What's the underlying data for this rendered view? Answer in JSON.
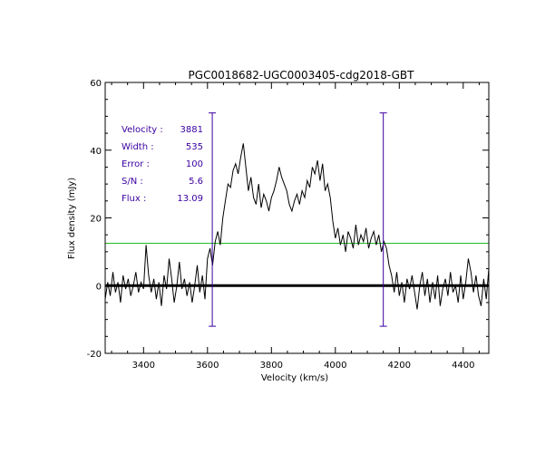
{
  "chart_data": {
    "type": "line",
    "title": "PGC0018682-UGC0003405-cdg2018-GBT",
    "xlabel": "Velocity (km/s)",
    "ylabel": "Flux density (mJy)",
    "xlim": [
      3280,
      4480
    ],
    "ylim": [
      -20,
      60
    ],
    "x_ticks": [
      3400,
      3600,
      3800,
      4000,
      4200,
      4400
    ],
    "y_ticks": [
      -20,
      0,
      20,
      40,
      60
    ],
    "grid": false,
    "series": [
      {
        "x": [
          3280,
          3288,
          3296,
          3304,
          3312,
          3320,
          3328,
          3336,
          3344,
          3352,
          3360,
          3368,
          3376,
          3384,
          3392,
          3400,
          3408,
          3416,
          3424,
          3432,
          3440,
          3448,
          3456,
          3464,
          3472,
          3480,
          3488,
          3496,
          3504,
          3512,
          3520,
          3528,
          3536,
          3544,
          3552,
          3560,
          3568,
          3576,
          3584,
          3592,
          3600,
          3608,
          3616,
          3624,
          3632,
          3640,
          3648,
          3656,
          3664,
          3672,
          3680,
          3688,
          3696,
          3704,
          3712,
          3720,
          3728,
          3736,
          3744,
          3752,
          3760,
          3768,
          3776,
          3784,
          3792,
          3800,
          3808,
          3816,
          3824,
          3832,
          3840,
          3848,
          3856,
          3864,
          3872,
          3880,
          3888,
          3896,
          3904,
          3912,
          3920,
          3928,
          3936,
          3944,
          3952,
          3960,
          3968,
          3976,
          3984,
          3992,
          4000,
          4008,
          4016,
          4024,
          4032,
          4040,
          4048,
          4056,
          4064,
          4072,
          4080,
          4088,
          4096,
          4104,
          4112,
          4120,
          4128,
          4136,
          4144,
          4152,
          4160,
          4168,
          4176,
          4184,
          4192,
          4200,
          4208,
          4216,
          4224,
          4232,
          4240,
          4248,
          4256,
          4264,
          4272,
          4280,
          4288,
          4296,
          4304,
          4312,
          4320,
          4328,
          4336,
          4344,
          4352,
          4360,
          4368,
          4376,
          4384,
          4392,
          4400,
          4408,
          4416,
          4424,
          4432,
          4440,
          4448,
          4456,
          4464,
          4472,
          4480
        ],
        "y": [
          -4,
          1,
          -3,
          4,
          -2,
          1,
          -5,
          3,
          -1,
          2,
          -3,
          0,
          4,
          -2,
          1,
          -1,
          12,
          3,
          -2,
          2,
          -4,
          1,
          -6,
          3,
          -1,
          8,
          2,
          -5,
          0,
          7,
          -1,
          2,
          -3,
          1,
          -5,
          0,
          6,
          -2,
          3,
          -4,
          8,
          11,
          6,
          13,
          16,
          12,
          20,
          25,
          30,
          29,
          34,
          36,
          33,
          38,
          42,
          35,
          28,
          32,
          26,
          24,
          30,
          23,
          27,
          25,
          22,
          26,
          28,
          31,
          35,
          32,
          30,
          28,
          24,
          22,
          25,
          27,
          24,
          28,
          26,
          31,
          29,
          35,
          33,
          37,
          31,
          36,
          28,
          30,
          26,
          19,
          14,
          17,
          12,
          15,
          10,
          16,
          14,
          11,
          18,
          12,
          15,
          13,
          17,
          11,
          14,
          16,
          12,
          15,
          10,
          13,
          11,
          6,
          3,
          -2,
          4,
          -3,
          1,
          -5,
          2,
          -1,
          3,
          -2,
          -7,
          0,
          4,
          -3,
          2,
          -5,
          1,
          -4,
          3,
          -6,
          -1,
          2,
          -3,
          4,
          -2,
          0,
          -5,
          3,
          -4,
          1,
          8,
          4,
          -2,
          3,
          -3,
          -6,
          2,
          -4,
          5
        ]
      }
    ],
    "markers": {
      "low": 3615,
      "high": 4150,
      "top": 51,
      "bottom": -12
    },
    "threshold": 12.5,
    "baseline": 0,
    "colors": {
      "data": "#000000",
      "markers": "#3a00a0",
      "threshold": "#22bb22",
      "baseline": "#000000",
      "info": "#3a00a0"
    }
  },
  "info": [
    {
      "label": "Velocity :",
      "value": "3881"
    },
    {
      "label": "Width :",
      "value": "535"
    },
    {
      "label": "Error :",
      "value": "100"
    },
    {
      "label": "S/N :",
      "value": "5.6"
    },
    {
      "label": "Flux :",
      "value": "13.09"
    }
  ]
}
